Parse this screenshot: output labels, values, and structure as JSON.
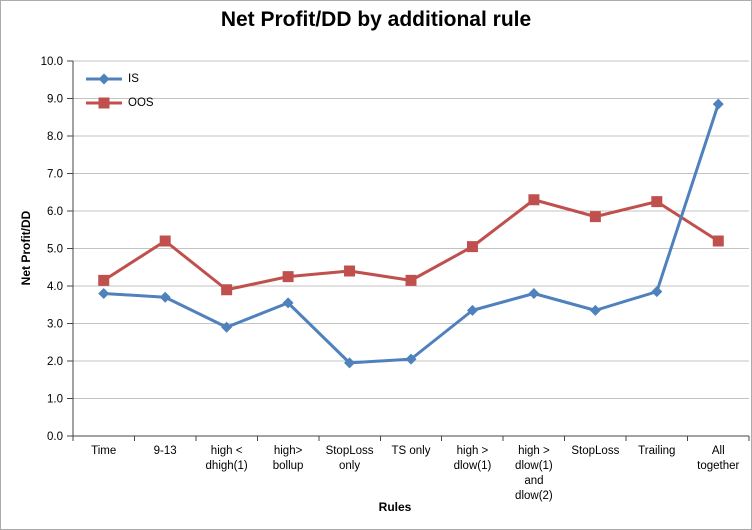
{
  "window": {
    "background": "#ffffff",
    "border_color": "#ababab"
  },
  "chart_data": {
    "type": "line",
    "title": "Net Profit/DD by additional rule",
    "xlabel": "Rules",
    "ylabel": "Net Profit/DD",
    "ylim": [
      0,
      10
    ],
    "ytick_step": 1,
    "ytick_decimals": 1,
    "grid": "horizontal",
    "legend_position": "top-left-inside",
    "categories": [
      "Time",
      "9-13",
      "high <\ndhigh(1)",
      "high>\nbollup",
      "StopLoss\nonly",
      "TS only",
      "high >\ndlow(1)",
      "high >\ndlow(1)\nand\ndlow(2)",
      "StopLoss",
      "Trailing",
      "All\ntogether"
    ],
    "series": [
      {
        "name": "IS",
        "color": "#4f81bd",
        "marker": "diamond",
        "values": [
          3.8,
          3.7,
          2.9,
          3.55,
          1.95,
          2.05,
          3.35,
          3.8,
          3.35,
          3.85,
          8.85
        ]
      },
      {
        "name": "OOS",
        "color": "#c0504d",
        "marker": "square",
        "values": [
          4.15,
          5.2,
          3.9,
          4.25,
          4.4,
          4.15,
          5.05,
          6.3,
          5.85,
          6.25,
          5.2
        ]
      }
    ],
    "colors": {
      "gridline": "#c3c3c3",
      "axis": "#454545",
      "text": "#000000"
    }
  }
}
